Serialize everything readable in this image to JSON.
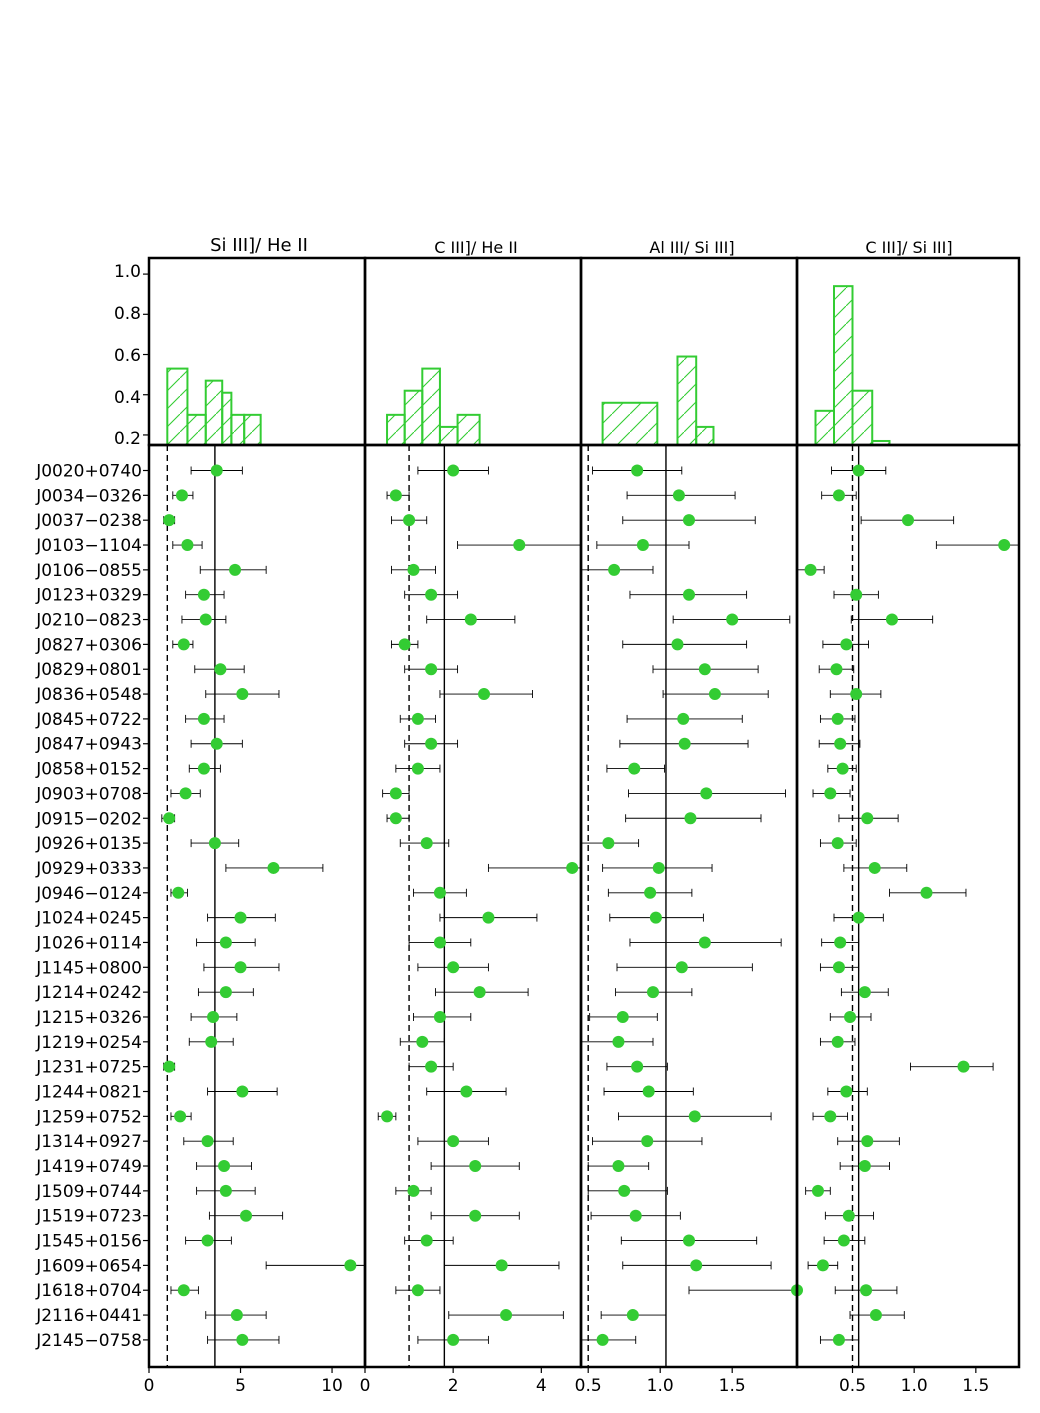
{
  "chart_data": {
    "type": "scatter",
    "objects": [
      "J0020+0740",
      "J0034−0326",
      "J0037−0238",
      "J0103−1104",
      "J0106−0855",
      "J0123+0329",
      "J0210−0823",
      "J0827+0306",
      "J0829+0801",
      "J0836+0548",
      "J0845+0722",
      "J0847+0943",
      "J0858+0152",
      "J0903+0708",
      "J0915−0202",
      "J0926+0135",
      "J0929+0333",
      "J0946−0124",
      "J1024+0245",
      "J1026+0114",
      "J1145+0800",
      "J1214+0242",
      "J1215+0326",
      "J1219+0254",
      "J1231+0725",
      "J1244+0821",
      "J1259+0752",
      "J1314+0927",
      "J1419+0749",
      "J1509+0744",
      "J1519+0723",
      "J1545+0156",
      "J1609+0654",
      "J1618+0704",
      "J2116+0441",
      "J2145−0758"
    ],
    "hist_yticks": [
      "0.2",
      "0.4",
      "0.6",
      "0.8",
      "1.0"
    ],
    "hist_ylim": [
      0.15,
      1.08
    ],
    "panels": [
      {
        "title": "Si III]/ He II",
        "xlim": [
          0,
          11.8
        ],
        "xticks": [
          0,
          5,
          10
        ],
        "xtick_labels": [
          "0",
          "5",
          "10"
        ],
        "vline_solid": 3.6,
        "vline_dashed": 1.0,
        "values": [
          3.7,
          1.8,
          1.1,
          2.1,
          4.7,
          3.0,
          3.1,
          1.9,
          3.9,
          5.1,
          3.0,
          3.7,
          3.0,
          2.0,
          1.1,
          3.6,
          6.8,
          1.6,
          5.0,
          4.2,
          5.0,
          4.2,
          3.5,
          3.4,
          1.1,
          5.1,
          1.7,
          3.2,
          4.1,
          4.2,
          5.3,
          3.2,
          11.0,
          1.9,
          4.8,
          5.1
        ],
        "err_low": [
          1.4,
          0.5,
          0.3,
          0.8,
          1.9,
          1.0,
          1.3,
          0.6,
          1.4,
          2.0,
          1.0,
          1.4,
          0.8,
          0.8,
          0.4,
          1.3,
          2.6,
          0.4,
          1.8,
          1.6,
          2.0,
          1.5,
          1.2,
          1.2,
          0.3,
          1.9,
          0.5,
          1.3,
          1.5,
          1.6,
          2.0,
          1.2,
          4.6,
          0.7,
          1.7,
          1.9
        ],
        "err_high": [
          1.4,
          0.6,
          0.3,
          0.8,
          1.7,
          1.1,
          1.1,
          0.5,
          1.3,
          2.0,
          1.1,
          1.4,
          0.9,
          0.8,
          0.3,
          1.3,
          2.7,
          0.5,
          1.9,
          1.6,
          2.1,
          1.5,
          1.3,
          1.2,
          0.3,
          1.9,
          0.6,
          1.4,
          1.5,
          1.6,
          2.0,
          1.3,
          0.8,
          0.8,
          1.6,
          2.0
        ],
        "hist": {
          "edges": [
            1.0,
            2.1,
            3.1,
            4.0,
            4.5,
            5.2,
            6.1
          ],
          "heights": [
            0.53,
            0.3,
            0.47,
            0.41,
            0.3,
            0.3
          ]
        }
      },
      {
        "title": "C III]/ He II",
        "xlim": [
          0,
          4.9
        ],
        "xticks": [
          0,
          2,
          4
        ],
        "xtick_labels": [
          "0",
          "2",
          "4"
        ],
        "vline_solid": 1.8,
        "vline_dashed": 1.0,
        "values": [
          2.0,
          0.7,
          1.0,
          3.5,
          1.1,
          1.5,
          2.4,
          0.9,
          1.5,
          2.7,
          1.2,
          1.5,
          1.2,
          0.7,
          0.7,
          1.4,
          4.7,
          1.7,
          2.8,
          1.7,
          2.0,
          2.6,
          1.7,
          1.3,
          1.5,
          2.3,
          0.5,
          2.0,
          2.5,
          1.1,
          2.5,
          1.4,
          3.1,
          1.2,
          3.2,
          2.0
        ],
        "err_low": [
          0.8,
          0.2,
          0.4,
          1.4,
          0.5,
          0.6,
          1.0,
          0.3,
          0.6,
          1.0,
          0.4,
          0.6,
          0.5,
          0.3,
          0.2,
          0.6,
          1.9,
          0.6,
          1.1,
          0.7,
          0.8,
          1.0,
          0.6,
          0.5,
          0.5,
          0.9,
          0.2,
          0.8,
          1.0,
          0.4,
          1.0,
          0.5,
          1.3,
          0.5,
          1.3,
          0.8
        ],
        "err_high": [
          0.8,
          0.3,
          0.4,
          1.4,
          0.5,
          0.6,
          1.0,
          0.3,
          0.6,
          1.1,
          0.4,
          0.6,
          0.5,
          0.3,
          0.3,
          0.5,
          0.2,
          0.6,
          1.1,
          0.7,
          0.8,
          1.1,
          0.7,
          0.5,
          0.5,
          0.9,
          0.2,
          0.8,
          1.0,
          0.4,
          1.0,
          0.6,
          1.3,
          0.5,
          1.3,
          0.8
        ],
        "hist": {
          "edges": [
            0.5,
            0.9,
            1.3,
            1.7,
            2.1,
            2.6,
            3.0
          ],
          "heights": [
            0.3,
            0.42,
            0.53,
            0.24,
            0.3,
            0.0
          ]
        }
      },
      {
        "title": "Al III/ Si III]",
        "xlim": [
          0.45,
          1.95
        ],
        "xticks": [
          0.5,
          1.0,
          1.5
        ],
        "xtick_labels": [
          "0.5",
          "1.0",
          "1.5"
        ],
        "vline_solid": 1.04,
        "vline_dashed": 0.5,
        "values": [
          0.84,
          1.13,
          1.2,
          0.88,
          0.68,
          1.2,
          1.5,
          1.12,
          1.31,
          1.38,
          1.16,
          1.17,
          0.82,
          1.32,
          1.21,
          0.64,
          0.99,
          0.93,
          0.97,
          1.31,
          1.15,
          0.95,
          0.74,
          0.71,
          0.84,
          0.92,
          1.24,
          0.91,
          0.71,
          0.75,
          0.83,
          1.2,
          1.25,
          1.96,
          0.81,
          0.6
        ],
        "err_low": [
          0.31,
          0.36,
          0.46,
          0.32,
          0.23,
          0.41,
          0.41,
          0.38,
          0.36,
          0.36,
          0.39,
          0.45,
          0.19,
          0.54,
          0.45,
          0.19,
          0.39,
          0.29,
          0.32,
          0.52,
          0.45,
          0.26,
          0.23,
          0.28,
          0.21,
          0.31,
          0.53,
          0.38,
          0.21,
          0.25,
          0.31,
          0.47,
          0.51,
          0.76,
          0.22,
          0.15
        ],
        "err_high": [
          0.31,
          0.39,
          0.46,
          0.32,
          0.27,
          0.4,
          0.4,
          0.48,
          0.37,
          0.37,
          0.41,
          0.44,
          0.21,
          0.55,
          0.49,
          0.21,
          0.37,
          0.29,
          0.33,
          0.53,
          0.49,
          0.27,
          0.24,
          0.24,
          0.21,
          0.31,
          0.53,
          0.38,
          0.21,
          0.3,
          0.31,
          0.47,
          0.52,
          0.0,
          0.23,
          0.23
        ],
        "hist": {
          "edges": [
            0.6,
            0.98,
            1.12,
            1.25,
            1.37
          ],
          "heights": [
            0.36,
            0.0,
            0.59,
            0.24
          ]
        }
      },
      {
        "title": "C III]/ Si III]",
        "xlim": [
          0.05,
          1.85
        ],
        "xticks": [
          0.5,
          1.0,
          1.5
        ],
        "xtick_labels": [
          "0.5",
          "1.0",
          "1.5"
        ],
        "vline_solid": 0.55,
        "vline_dashed": 0.5,
        "values": [
          0.55,
          0.39,
          0.95,
          1.73,
          0.16,
          0.53,
          0.82,
          0.45,
          0.37,
          0.53,
          0.38,
          0.4,
          0.42,
          0.32,
          0.62,
          0.38,
          0.68,
          1.1,
          0.55,
          0.4,
          0.39,
          0.6,
          0.48,
          0.38,
          1.4,
          0.45,
          0.32,
          0.62,
          0.6,
          0.22,
          0.47,
          0.43,
          0.26,
          0.61,
          0.69,
          0.39
        ],
        "err_low": [
          0.22,
          0.14,
          0.38,
          0.55,
          0.11,
          0.18,
          0.33,
          0.19,
          0.14,
          0.21,
          0.14,
          0.17,
          0.12,
          0.14,
          0.23,
          0.14,
          0.25,
          0.3,
          0.2,
          0.15,
          0.15,
          0.19,
          0.16,
          0.14,
          0.43,
          0.15,
          0.14,
          0.24,
          0.2,
          0.1,
          0.19,
          0.16,
          0.12,
          0.25,
          0.21,
          0.15
        ],
        "err_high": [
          0.22,
          0.14,
          0.37,
          0.12,
          0.11,
          0.18,
          0.33,
          0.18,
          0.14,
          0.2,
          0.14,
          0.16,
          0.11,
          0.16,
          0.25,
          0.15,
          0.26,
          0.32,
          0.2,
          0.15,
          0.16,
          0.19,
          0.17,
          0.14,
          0.24,
          0.17,
          0.14,
          0.26,
          0.2,
          0.1,
          0.2,
          0.17,
          0.12,
          0.25,
          0.23,
          0.16
        ],
        "hist": {
          "edges": [
            0.2,
            0.35,
            0.5,
            0.66,
            0.8,
            0.95
          ],
          "heights": [
            0.32,
            0.94,
            0.42,
            0.17,
            0.0
          ]
        }
      }
    ]
  },
  "colors": {
    "marker": "#33cc33",
    "hist_edge": "#33cc33",
    "errorbar": "#000000",
    "frame": "#000000"
  }
}
